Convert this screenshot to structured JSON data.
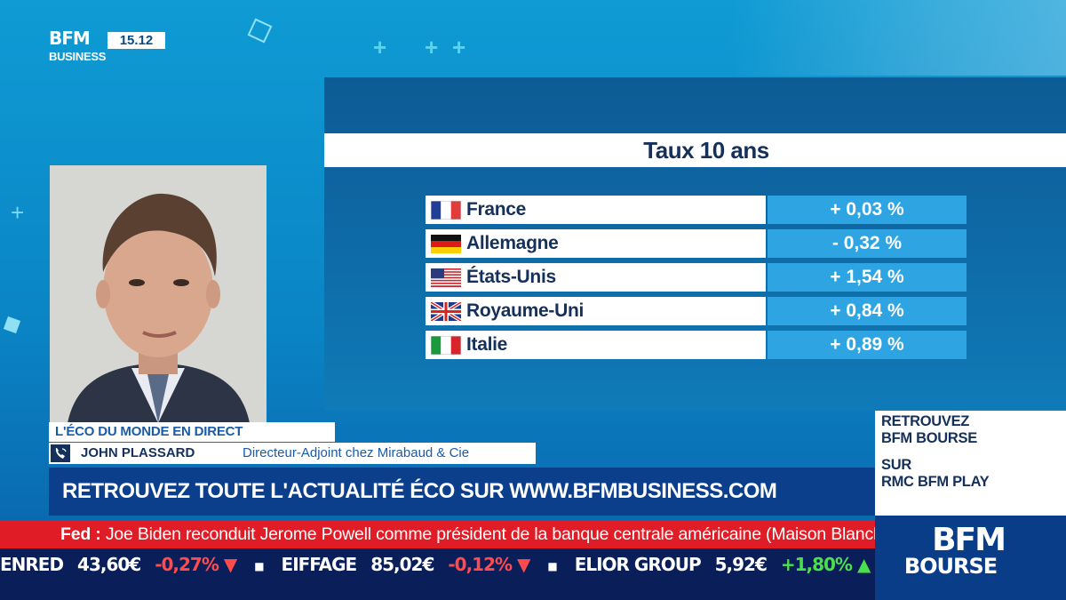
{
  "channel": {
    "logo_top": "BFM",
    "logo_bottom": "BUSINESS",
    "clock": "15.12"
  },
  "panel": {
    "title": "Taux 10 ans",
    "rows": [
      {
        "country": "France",
        "value": "+ 0,03 %",
        "flag_icon": "france-flag-icon"
      },
      {
        "country": "Allemagne",
        "value": "- 0,32 %",
        "flag_icon": "germany-flag-icon"
      },
      {
        "country": "États-Unis",
        "value": "+ 1,54 %",
        "flag_icon": "usa-flag-icon"
      },
      {
        "country": "Royaume-Uni",
        "value": "+ 0,84 %",
        "flag_icon": "uk-flag-icon"
      },
      {
        "country": "Italie",
        "value": "+ 0,89 %",
        "flag_icon": "italy-flag-icon"
      }
    ]
  },
  "lower_third": {
    "show_title": "L'ÉCO DU MONDE EN DIRECT",
    "guest_name": "JOHN PLASSARD",
    "guest_role": "Directeur-Adjoint chez Mirabaud & Cie",
    "promo": "RETROUVEZ TOUTE L'ACTUALITÉ ÉCO SUR WWW.BFMBUSINESS.COM"
  },
  "news": {
    "label": "Fed :",
    "text": "Joe Biden reconduit Jerome Powell comme président de la banque centrale américaine (Maison Blanche)."
  },
  "ticker": [
    {
      "name": "ENRED",
      "price": "43,60€",
      "change": "-0,27%",
      "direction": "down"
    },
    {
      "name": "EIFFAGE",
      "price": "85,02€",
      "change": "-0,12%",
      "direction": "down"
    },
    {
      "name": "ELIOR GROUP",
      "price": "5,92€",
      "change": "+1,80%",
      "direction": "up"
    }
  ],
  "right_promo": {
    "line1": "RETROUVEZ",
    "line2": "BFM BOURSE",
    "line3": "SUR",
    "line4": "RMC BFM PLAY"
  },
  "bourse_logo": {
    "top": "BFM",
    "bottom": "BOURSE"
  },
  "colors": {
    "accent_blue": "#2fa4e3",
    "navy": "#0b3f8c",
    "news_red": "#e01d26",
    "ticker_bg": "#0a1f5a",
    "neg": "#ff4b4b",
    "pos": "#4be04b"
  }
}
